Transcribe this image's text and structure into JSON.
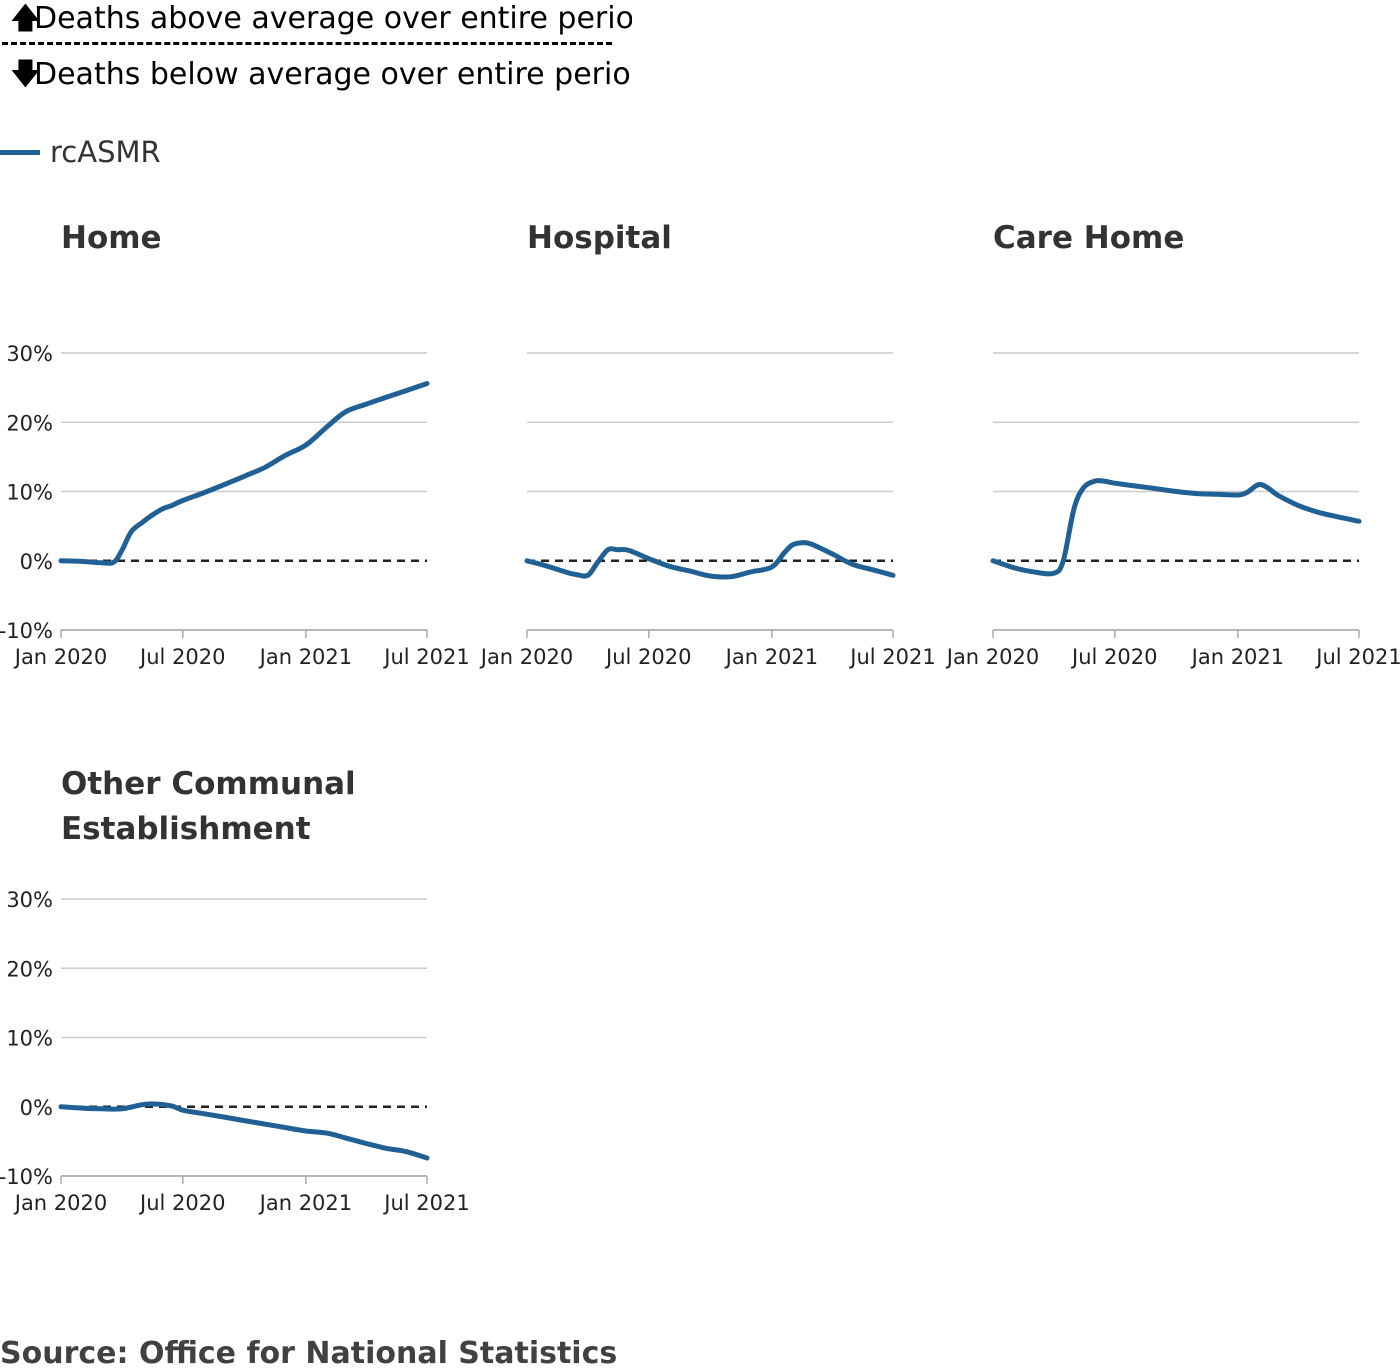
{
  "annotation": {
    "above_text": "Deaths above average over entire perio",
    "below_text": "Deaths below average over entire perio",
    "above_icon": "arrow-up-icon",
    "below_icon": "arrow-down-icon"
  },
  "legend": {
    "label": "rcASMR",
    "color": "#206095"
  },
  "source": "Source: Office for National Statistics",
  "chart_data": {
    "type": "line",
    "facet": "small-multiples",
    "series_name": "rcASMR",
    "line_color": "#206095",
    "ylim": [
      -10,
      30
    ],
    "yticks": [
      -10,
      0,
      10,
      20,
      30
    ],
    "ytick_labels": [
      "-10%",
      "0%",
      "10%",
      "20%",
      "30%"
    ],
    "xlim": [
      "2020-01-01",
      "2021-07-01"
    ],
    "xticks": [
      "2020-01-01",
      "2020-07-01",
      "2021-01-01",
      "2021-07-01"
    ],
    "xtick_labels": [
      "Jan 2020",
      "Jul 2020",
      "Jan 2021",
      "Jul 2021"
    ],
    "reference_line": 0,
    "grid": true,
    "panels": [
      {
        "title_lines": [
          "Home"
        ],
        "x": [
          "2020-01-01",
          "2020-02-01",
          "2020-03-01",
          "2020-03-20",
          "2020-04-01",
          "2020-04-15",
          "2020-05-01",
          "2020-05-15",
          "2020-06-01",
          "2020-06-15",
          "2020-07-01",
          "2020-08-01",
          "2020-09-01",
          "2020-10-01",
          "2020-11-01",
          "2020-12-01",
          "2021-01-01",
          "2021-02-01",
          "2021-03-01",
          "2021-04-01",
          "2021-05-01",
          "2021-06-01",
          "2021-07-01"
        ],
        "values": [
          0,
          -0.1,
          -0.3,
          -0.2,
          1.5,
          4.2,
          5.5,
          6.5,
          7.5,
          8.0,
          8.7,
          9.8,
          11.0,
          12.2,
          13.5,
          15.2,
          16.7,
          19.3,
          21.5,
          22.6,
          23.6,
          24.6,
          25.6
        ]
      },
      {
        "title_lines": [
          "Hospital"
        ],
        "x": [
          "2020-01-01",
          "2020-02-01",
          "2020-03-01",
          "2020-03-15",
          "2020-04-01",
          "2020-04-15",
          "2020-05-01",
          "2020-05-15",
          "2020-06-01",
          "2020-07-01",
          "2020-08-01",
          "2020-09-01",
          "2020-10-01",
          "2020-11-01",
          "2020-12-01",
          "2021-01-01",
          "2021-01-20",
          "2021-02-01",
          "2021-02-15",
          "2021-03-01",
          "2021-04-01",
          "2021-05-01",
          "2021-06-01",
          "2021-07-01"
        ],
        "values": [
          0,
          -0.8,
          -1.7,
          -2.0,
          -2.1,
          -0.3,
          1.6,
          1.6,
          1.5,
          0.3,
          -0.8,
          -1.5,
          -2.2,
          -2.3,
          -1.6,
          -0.9,
          1.2,
          2.3,
          2.6,
          2.4,
          1.0,
          -0.5,
          -1.3,
          -2.1
        ]
      },
      {
        "title_lines": [
          "Care Home"
        ],
        "x": [
          "2020-01-01",
          "2020-02-01",
          "2020-03-01",
          "2020-04-01",
          "2020-04-15",
          "2020-05-01",
          "2020-05-15",
          "2020-06-01",
          "2020-06-15",
          "2020-07-01",
          "2020-08-01",
          "2020-09-01",
          "2020-10-01",
          "2020-11-01",
          "2020-12-01",
          "2021-01-01",
          "2021-01-15",
          "2021-02-01",
          "2021-02-15",
          "2021-03-01",
          "2021-04-01",
          "2021-05-01",
          "2021-06-01",
          "2021-07-01"
        ],
        "values": [
          0,
          -1.0,
          -1.6,
          -1.8,
          0,
          7.5,
          10.5,
          11.5,
          11.5,
          11.2,
          10.8,
          10.4,
          10.0,
          9.7,
          9.6,
          9.5,
          9.9,
          11.0,
          10.5,
          9.5,
          8.0,
          7.0,
          6.3,
          5.7
        ]
      },
      {
        "title_lines": [
          "Other Communal",
          "Establishment"
        ],
        "x": [
          "2020-01-01",
          "2020-02-01",
          "2020-03-01",
          "2020-04-01",
          "2020-05-01",
          "2020-05-20",
          "2020-06-15",
          "2020-07-01",
          "2020-08-01",
          "2020-09-01",
          "2020-10-01",
          "2020-11-01",
          "2020-12-01",
          "2021-01-01",
          "2021-02-01",
          "2021-03-01",
          "2021-04-01",
          "2021-05-01",
          "2021-06-01",
          "2021-07-01"
        ],
        "values": [
          0,
          -0.2,
          -0.3,
          -0.3,
          0.3,
          0.4,
          0.1,
          -0.5,
          -1.0,
          -1.5,
          -2.0,
          -2.5,
          -3.0,
          -3.5,
          -3.8,
          -4.5,
          -5.3,
          -6.0,
          -6.5,
          -7.4
        ]
      }
    ]
  }
}
